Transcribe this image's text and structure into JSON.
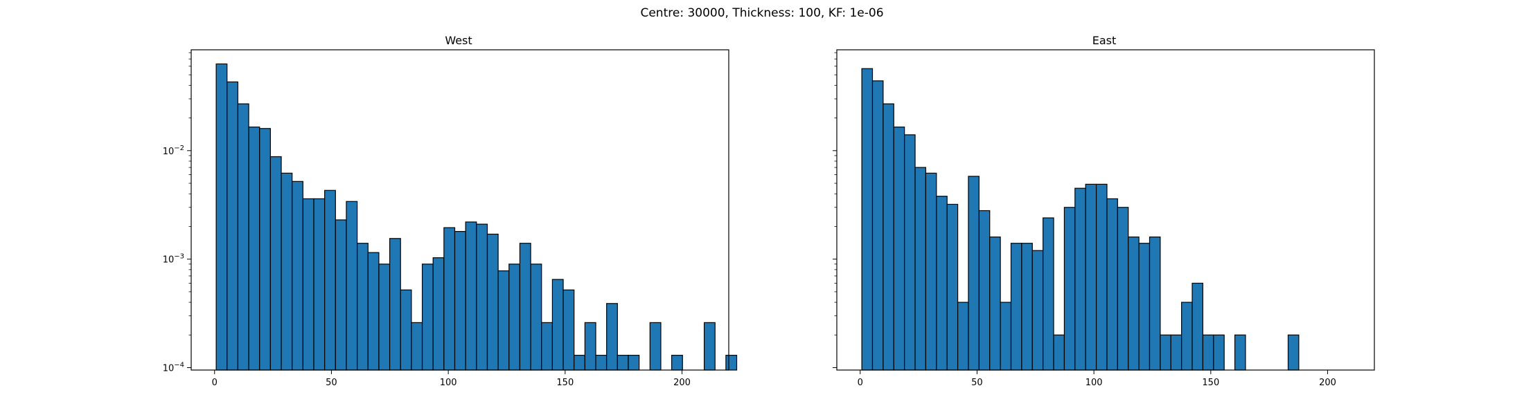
{
  "figure": {
    "suptitle": "Centre: 30000, Thickness: 100, KF: 1e-06"
  },
  "chart_data": [
    {
      "type": "bar",
      "title": "West",
      "xlabel": "",
      "ylabel": "",
      "yscale": "log",
      "xlim": [
        -10,
        220
      ],
      "ylim": [
        9.5e-05,
        0.085
      ],
      "xticks": [
        0,
        50,
        100,
        150,
        200
      ],
      "yticks": [
        {
          "value": 0.0001,
          "base": "10",
          "exp": "−4"
        },
        {
          "value": 0.001,
          "base": "10",
          "exp": "−3"
        },
        {
          "value": 0.01,
          "base": "10",
          "exp": "−2"
        }
      ],
      "bin_width": 4.64,
      "bin_start": 0.7,
      "bar_color": "#1f77b4",
      "edge_color": "#000000",
      "grid": false,
      "values": [
        0.063,
        0.043,
        0.027,
        0.0165,
        0.016,
        0.0088,
        0.0062,
        0.0052,
        0.0036,
        0.0036,
        0.0043,
        0.0023,
        0.0034,
        0.0014,
        0.00115,
        0.0009,
        0.00155,
        0.00052,
        0.00026,
        0.0009,
        0.00103,
        0.00195,
        0.0018,
        0.0022,
        0.0021,
        0.0017,
        0.00078,
        0.0009,
        0.0014,
        0.0009,
        0.00026,
        0.00065,
        0.00052,
        0.00013,
        0.00026,
        0.00013,
        0.00039,
        0.00013,
        0.00013,
        0,
        0.00026,
        0,
        0.00013,
        0,
        0,
        0.00026,
        0,
        0.00013
      ]
    },
    {
      "type": "bar",
      "title": "East",
      "xlabel": "",
      "ylabel": "",
      "yscale": "log",
      "xlim": [
        -10,
        220
      ],
      "ylim": [
        9.5e-05,
        0.085
      ],
      "xticks": [
        0,
        50,
        100,
        150,
        200
      ],
      "yticks": [
        {
          "value": 0.0001,
          "base": "",
          "exp": ""
        },
        {
          "value": 0.001,
          "base": "",
          "exp": ""
        },
        {
          "value": 0.01,
          "base": "",
          "exp": ""
        }
      ],
      "bin_width": 4.56,
      "bin_start": 0.7,
      "bar_color": "#1f77b4",
      "edge_color": "#000000",
      "grid": false,
      "values": [
        0.057,
        0.044,
        0.027,
        0.0165,
        0.014,
        0.007,
        0.0062,
        0.0038,
        0.0032,
        0.0004,
        0.0058,
        0.0028,
        0.0016,
        0.0004,
        0.0014,
        0.0014,
        0.0012,
        0.0024,
        0.0002,
        0.003,
        0.0045,
        0.0049,
        0.0049,
        0.0036,
        0.003,
        0.0016,
        0.0014,
        0.0016,
        0.0002,
        0.0002,
        0.0004,
        0.0006,
        0.0002,
        0.0002,
        0,
        0.0002,
        0,
        0,
        0,
        0,
        0.0002
      ]
    }
  ]
}
